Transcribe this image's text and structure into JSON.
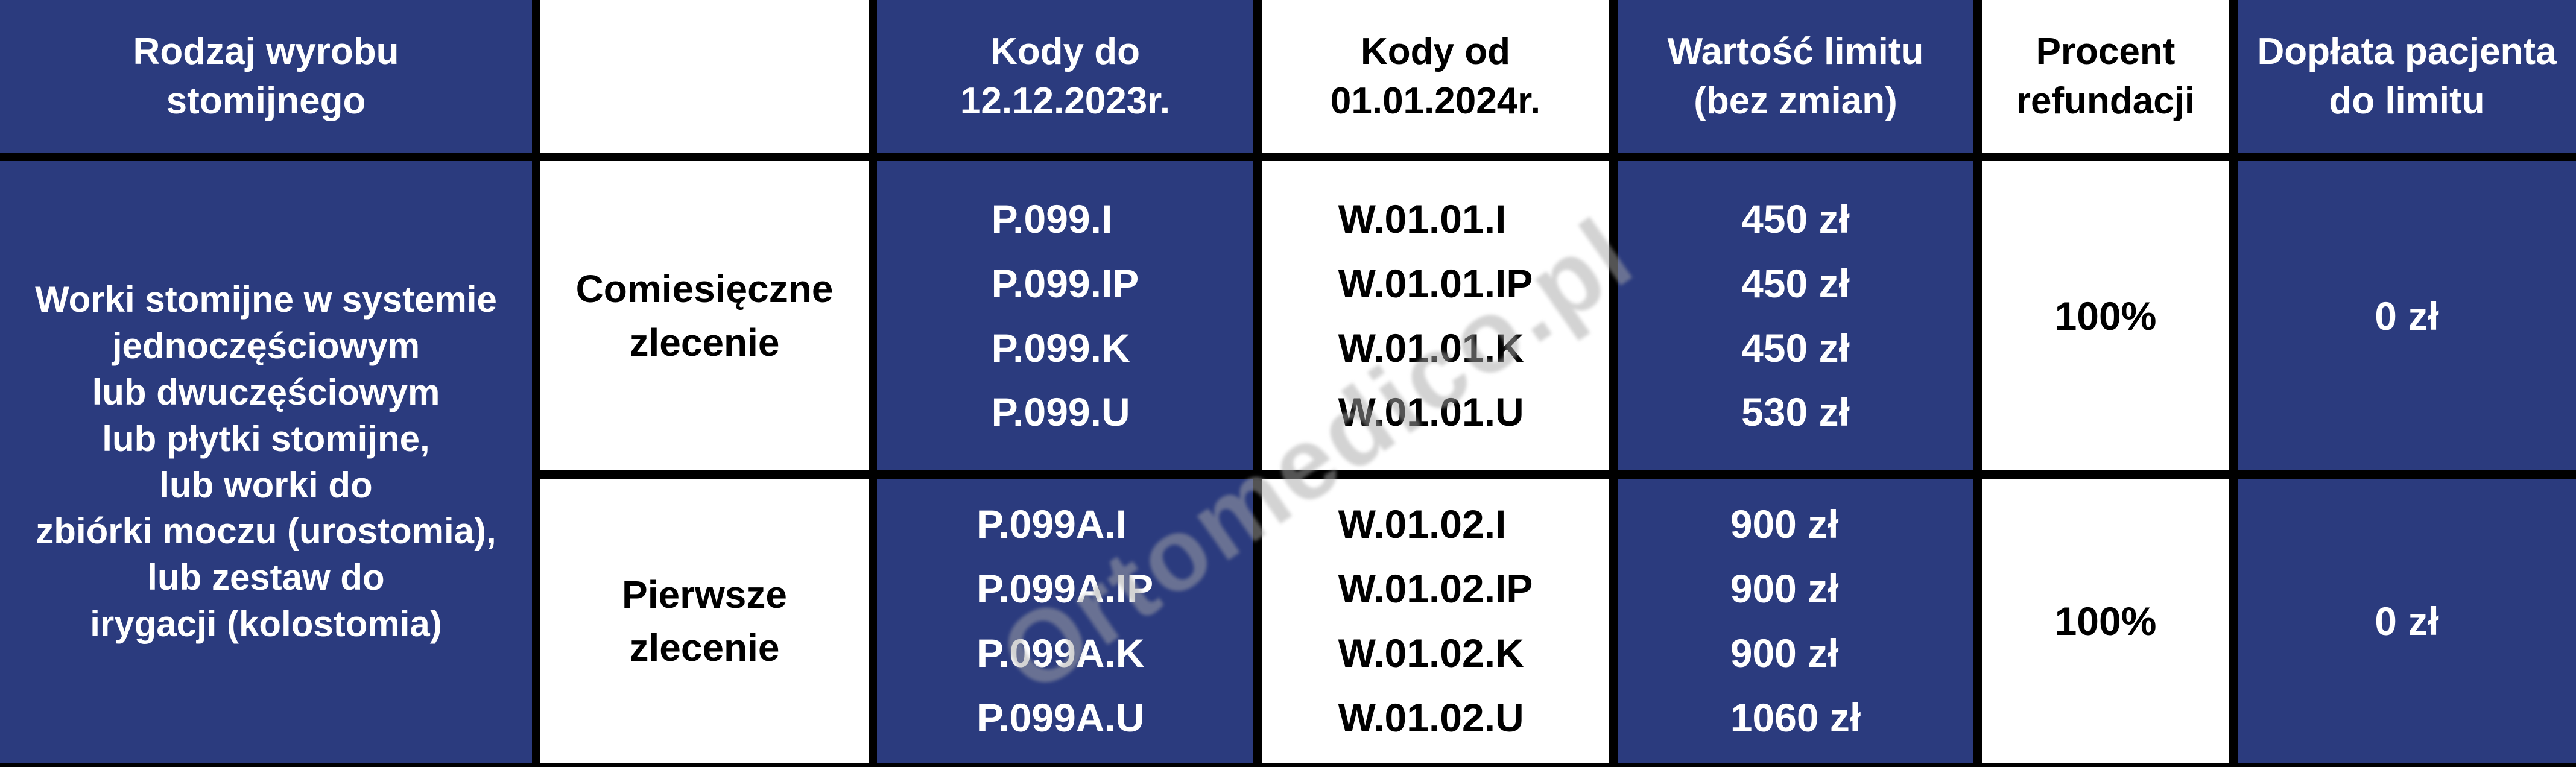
{
  "colors": {
    "navy": "#2B3B7E",
    "white": "#FFFFFF",
    "black": "#000000",
    "watermark_gray": "#A8A8A8"
  },
  "watermark": "Ortomedico.pl",
  "table": {
    "headers": {
      "product_type": "Rodzaj wyrobu\nstomijnego",
      "order_type": "",
      "codes_old": "Kody do\n12.12.2023r.",
      "codes_new": "Kody od\n01.01.2024r.",
      "limit_value": "Wartość limitu\n(bez zmian)",
      "refund_percent": "Procent\nrefundacji",
      "patient_copay": "Dopłata pacjenta\ndo limitu"
    },
    "product_group": "Worki stomijne w systemie\njednoczęściowym\nlub dwuczęściowym\nlub płytki stomijne,\nlub worki do\nzbiórki moczu (urostomia),\nlub zestaw do\nirygacji (kolostomia)",
    "rows": [
      {
        "order_type": "Comiesięczne\nzlecenie",
        "codes_old": "P.099.I\nP.099.IP\nP.099.K\nP.099.U",
        "codes_new": "W.01.01.I\nW.01.01.IP\nW.01.01.K\nW.01.01.U",
        "limit_values": "450 zł\n450 zł\n450 zł\n530 zł",
        "refund_percent": "100%",
        "patient_copay": "0 zł"
      },
      {
        "order_type": "Pierwsze\nzlecenie",
        "codes_old": "P.099A.I\nP.099A.IP\nP.099A.K\nP.099A.U",
        "codes_new": "W.01.02.I\nW.01.02.IP\nW.01.02.K\nW.01.02.U",
        "limit_values": "900 zł\n900 zł\n900 zł\n1060 zł",
        "refund_percent": "100%",
        "patient_copay": "0 zł"
      }
    ]
  }
}
